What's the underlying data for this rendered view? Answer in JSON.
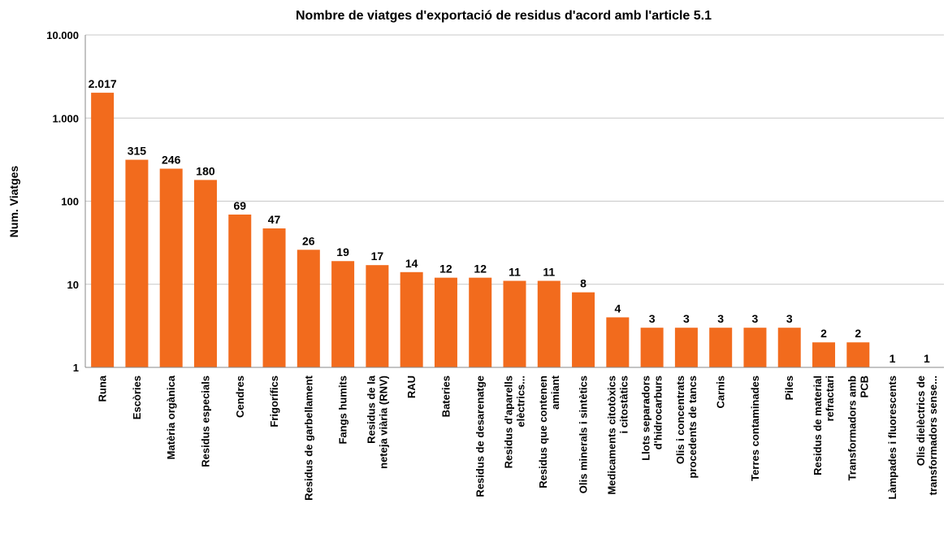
{
  "chart_data": {
    "type": "bar",
    "title": "Nombre de viatges d'exportació de residus d'acord amb l'article 5.1",
    "y_label": "Num. Viatges",
    "categories": [
      "Runa",
      "Escòries",
      "Matèria orgànica",
      "Residus especials",
      "Cendres",
      "Frigorífics",
      "Residus de garbellament",
      "Fangs humits",
      "Residus de la\nneteja viària (RNV)",
      "RAU",
      "Bateries",
      "Residus de desarenatge",
      "Residus d'aparells\nelèctrics...",
      "Residus que contenen\namiant",
      "Olis minerals i sintètics",
      "Medicaments citotòxics\ni citostàtics",
      "Llots separadors\nd'hidrocarburs",
      "Olis i concentrats\nprocedents de tancs",
      "Carnis",
      "Terres contaminades",
      "Piles",
      "Residus de material\nrefractari",
      "Transformadors amb\nPCB",
      "Làmpades i fluorescents",
      "Olis dielèctrics de\ntransformadors sense..."
    ],
    "values": [
      2017,
      315,
      246,
      180,
      69,
      47,
      26,
      19,
      17,
      14,
      12,
      12,
      11,
      11,
      8,
      4,
      3,
      3,
      3,
      3,
      3,
      2,
      2,
      1,
      1
    ],
    "value_labels": [
      "2.017",
      "315",
      "246",
      "180",
      "69",
      "47",
      "26",
      "19",
      "17",
      "14",
      "12",
      "12",
      "11",
      "11",
      "8",
      "4",
      "3",
      "3",
      "3",
      "3",
      "3",
      "2",
      "2",
      "1",
      "1"
    ],
    "color": "#f26b1d",
    "log_scale": true,
    "grid": true,
    "ylim": [
      1,
      10000
    ],
    "yticks": [
      1,
      10,
      100,
      {
        "value": 1000,
        "label": "1.000"
      },
      {
        "value": 10000,
        "label": "10.000"
      }
    ]
  }
}
